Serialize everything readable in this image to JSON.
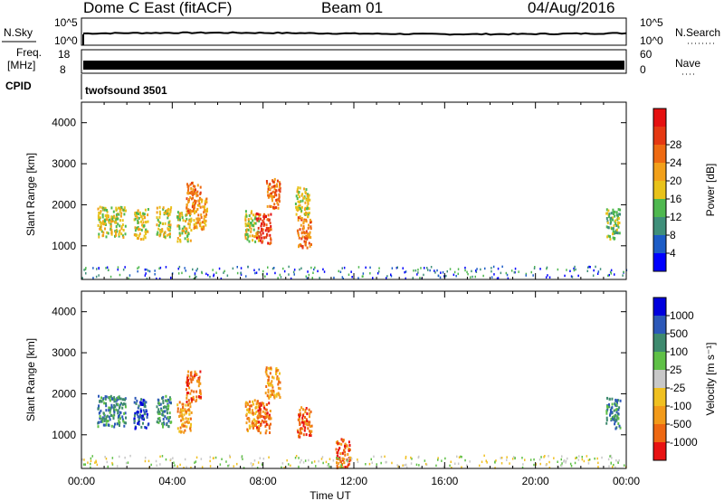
{
  "header": {
    "title": "Dome C East (fitACF)",
    "beam": "Beam 01",
    "date": "04/Aug/2016"
  },
  "panels": {
    "nsky": {
      "label": "N.Sky",
      "left_ticks": [
        "10^5",
        "10^0"
      ],
      "right_ticks": [
        "10^5",
        "10^0"
      ],
      "right_label": "N.Search"
    },
    "freq": {
      "label_line1": "Freq.",
      "label_line2": "[MHz]",
      "left_ticks": [
        "18",
        "8"
      ],
      "right_ticks": [
        "60",
        "0"
      ],
      "right_label": "Nave"
    },
    "cpid": {
      "label": "CPID",
      "value": "twofsound 3501"
    }
  },
  "chart_data": [
    {
      "type": "heatmap",
      "name": "power",
      "ylabel": "Slant Range [km]",
      "y_ticks": [
        1000,
        2000,
        3000,
        4000
      ],
      "ylim": [
        180,
        4500
      ],
      "x_ticks": [
        "00:00",
        "04:00",
        "08:00",
        "12:00",
        "16:00",
        "20:00",
        "00:00"
      ],
      "xlim_hours": [
        0,
        24
      ],
      "colorbar": {
        "label": "Power [dB]",
        "ticks": [
          "4",
          "8",
          "12",
          "16",
          "20",
          "24",
          "28"
        ],
        "colors": [
          "#0000ff",
          "#1c5cc6",
          "#3f8f7a",
          "#4fb84f",
          "#e8c21a",
          "#f2a01a",
          "#ee6a12",
          "#e53812",
          "#e51010"
        ]
      },
      "clusters": [
        {
          "t": 1.0,
          "r": 1600,
          "level": 0.45
        },
        {
          "t": 1.6,
          "r": 1600,
          "level": 0.45
        },
        {
          "t": 2.6,
          "r": 1550,
          "level": 0.55
        },
        {
          "t": 3.6,
          "r": 1600,
          "level": 0.45
        },
        {
          "t": 4.5,
          "r": 1500,
          "level": 0.5
        },
        {
          "t": 4.9,
          "r": 2200,
          "level": 0.7
        },
        {
          "t": 5.2,
          "r": 1800,
          "level": 0.6
        },
        {
          "t": 7.5,
          "r": 1500,
          "level": 0.5
        },
        {
          "t": 8.0,
          "r": 1450,
          "level": 0.85
        },
        {
          "t": 8.4,
          "r": 2300,
          "level": 0.75
        },
        {
          "t": 9.8,
          "r": 1350,
          "level": 0.75
        },
        {
          "t": 9.7,
          "r": 2100,
          "level": 0.5
        },
        {
          "t": 23.4,
          "r": 1550,
          "level": 0.4
        }
      ]
    },
    {
      "type": "heatmap",
      "name": "velocity",
      "ylabel": "Slant Range [km]",
      "y_ticks": [
        1000,
        2000,
        3000,
        4000
      ],
      "ylim": [
        180,
        4500
      ],
      "x_ticks": [
        "00:00",
        "04:00",
        "08:00",
        "12:00",
        "16:00",
        "20:00",
        "00:00"
      ],
      "xlim_hours": [
        0,
        24
      ],
      "xlabel": "Time UT",
      "colorbar": {
        "label": "Velocity [m s⁻¹]",
        "ticks": [
          "1000",
          "500",
          "100",
          "25",
          "-25",
          "-100",
          "-500",
          "-1000"
        ],
        "colors": [
          "#0000dd",
          "#2c58b8",
          "#3e8a6e",
          "#5fc046",
          "#c8c8c8",
          "#f0c020",
          "#f29a1a",
          "#ee6812",
          "#e81212"
        ]
      },
      "clusters": [
        {
          "t": 1.0,
          "r": 1600,
          "vel": 150
        },
        {
          "t": 1.6,
          "r": 1600,
          "vel": 80
        },
        {
          "t": 2.6,
          "r": 1550,
          "vel": 600
        },
        {
          "t": 3.6,
          "r": 1600,
          "vel": 200
        },
        {
          "t": 4.5,
          "r": 1450,
          "vel": -200
        },
        {
          "t": 4.9,
          "r": 2200,
          "vel": -300
        },
        {
          "t": 7.5,
          "r": 1500,
          "vel": -150
        },
        {
          "t": 8.0,
          "r": 1450,
          "vel": -400
        },
        {
          "t": 8.4,
          "r": 2300,
          "vel": -250
        },
        {
          "t": 9.8,
          "r": 1350,
          "vel": -400
        },
        {
          "t": 11.5,
          "r": 550,
          "vel": -600
        },
        {
          "t": 23.4,
          "r": 1550,
          "vel": 300
        }
      ]
    }
  ]
}
